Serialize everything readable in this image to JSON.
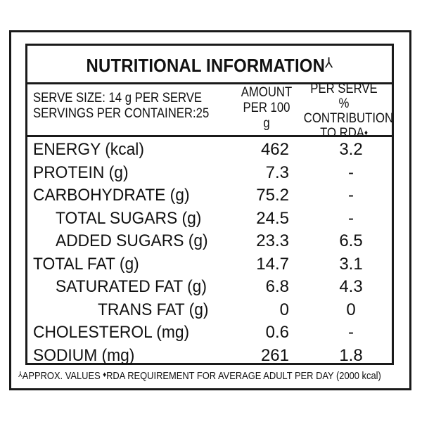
{
  "title": "NUTRITIONAL INFORMATION",
  "title_symbol": "⅄",
  "header": {
    "serve_size": "SERVE SIZE: 14 g PER SERVE",
    "servings": "SERVINGS PER CONTAINER:25",
    "amount_line1": "AMOUNT",
    "amount_line2": "PER 100 g",
    "rda_line1": "PER SERVE %",
    "rda_line2": "CONTRIBUTION",
    "rda_line3": "TO RDA",
    "rda_symbol": "♦"
  },
  "rows": [
    {
      "name": "ENERGY (kcal)",
      "amount": "462",
      "rda": "3.2",
      "indent": 0
    },
    {
      "name": "PROTEIN (g)",
      "amount": "7.3",
      "rda": "-",
      "indent": 0
    },
    {
      "name": "CARBOHYDRATE (g)",
      "amount": "75.2",
      "rda": "-",
      "indent": 0
    },
    {
      "name": "TOTAL SUGARS (g)",
      "amount": "24.5",
      "rda": "-",
      "indent": 1
    },
    {
      "name": "ADDED SUGARS (g)",
      "amount": "23.3",
      "rda": "6.5",
      "indent": 1
    },
    {
      "name": "TOTAL FAT (g)",
      "amount": "14.7",
      "rda": "3.1",
      "indent": 0
    },
    {
      "name": "SATURATED FAT (g)",
      "amount": "6.8",
      "rda": "4.3",
      "indent": 1
    },
    {
      "name": "TRANS FAT (g)",
      "amount": "0",
      "rda": "0",
      "indent": 2
    },
    {
      "name": "CHOLESTEROL (mg)",
      "amount": "0.6",
      "rda": "-",
      "indent": 0
    },
    {
      "name": "SODIUM (mg)",
      "amount": "261",
      "rda": "1.8",
      "indent": 0
    }
  ],
  "footer": {
    "approx_symbol": "⅄",
    "approx_text": "APPROX. VALUES",
    "rda_symbol": "♦",
    "rda_text": "RDA REQUIREMENT FOR AVERAGE ADULT PER DAY (2000 kcal)"
  }
}
